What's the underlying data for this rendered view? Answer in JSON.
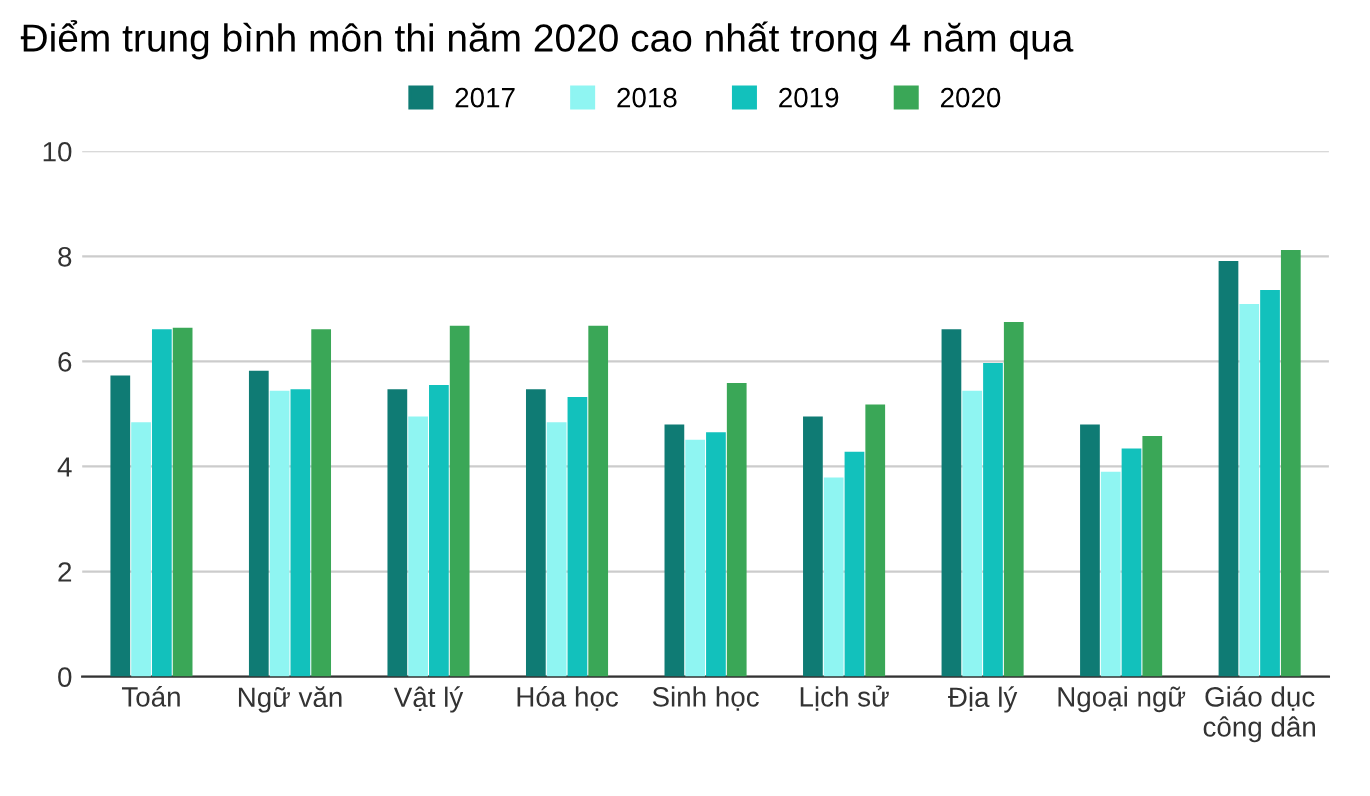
{
  "chart_data": {
    "type": "bar",
    "title": "Điểm trung bình môn thi năm 2020 cao nhất trong 4 năm qua",
    "categories": [
      "Toán",
      "Ngữ văn",
      "Vật lý",
      "Hóa học",
      "Sinh học",
      "Lịch sử",
      "Địa lý",
      "Ngoại ngữ",
      "Giáo dục\ncông dân"
    ],
    "series": [
      {
        "name": "2017",
        "color": "#0f7b74",
        "values": [
          5.73,
          5.82,
          5.47,
          5.47,
          4.8,
          4.95,
          6.61,
          4.8,
          7.91
        ]
      },
      {
        "name": "2018",
        "color": "#8ff5f2",
        "values": [
          4.84,
          5.44,
          4.95,
          4.84,
          4.51,
          3.79,
          5.44,
          3.9,
          7.09
        ]
      },
      {
        "name": "2019",
        "color": "#12c1bc",
        "values": [
          6.61,
          5.47,
          5.55,
          5.32,
          4.65,
          4.28,
          5.97,
          4.34,
          7.36
        ]
      },
      {
        "name": "2020",
        "color": "#3aa757",
        "values": [
          6.64,
          6.61,
          6.68,
          6.68,
          5.59,
          5.18,
          6.75,
          4.58,
          8.12
        ]
      }
    ],
    "ylim": [
      0,
      10
    ],
    "yticks": [
      0,
      2,
      4,
      6,
      8,
      10
    ],
    "grid": "y",
    "legend": "top"
  }
}
